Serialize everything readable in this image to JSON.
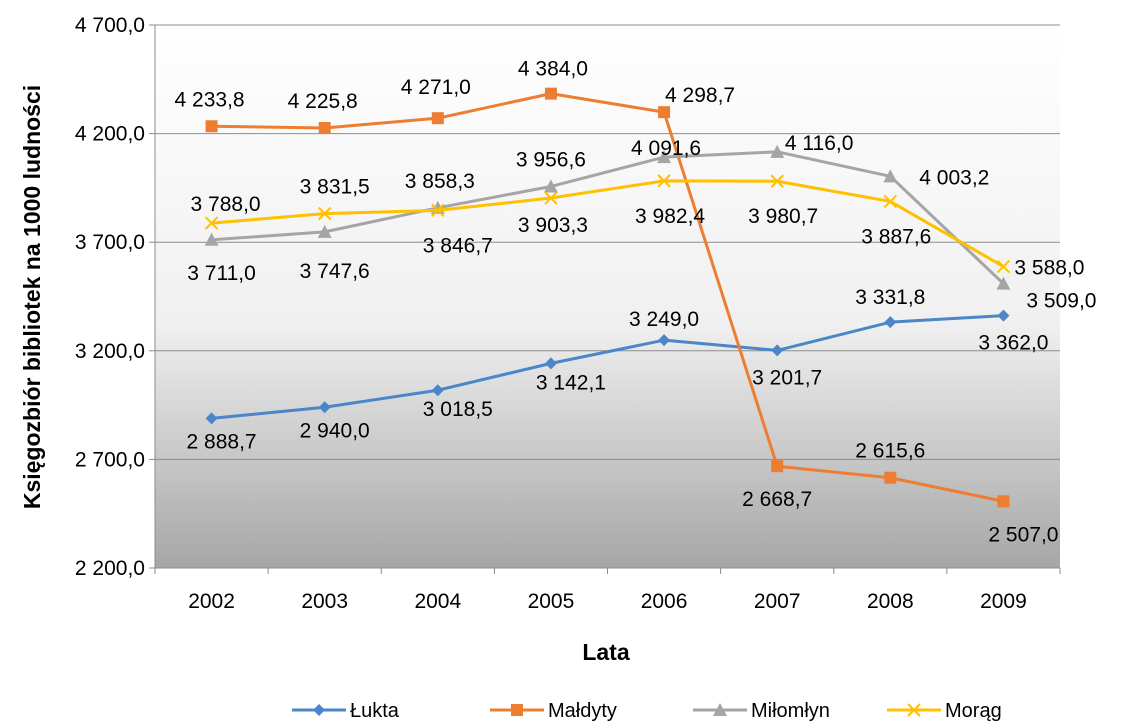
{
  "chart_data": {
    "type": "line",
    "title": "",
    "xlabel": "Lata",
    "ylabel": "Księgozbiór bibliotek na 1000 ludności",
    "x": [
      "2002",
      "2003",
      "2004",
      "2005",
      "2006",
      "2007",
      "2008",
      "2009"
    ],
    "ylim": [
      2200,
      4700
    ],
    "yticks": [
      2200,
      2700,
      3200,
      3700,
      4200,
      4700
    ],
    "ytick_labels": [
      "2 200,0",
      "2 700,0",
      "3 200,0",
      "3 700,0",
      "4 200,0",
      "4 700,0"
    ],
    "grid": true,
    "legend_position": "bottom",
    "series": [
      {
        "name": "Łukta",
        "color": "#4A86C8",
        "marker": "diamond",
        "values": [
          2888.7,
          2940.0,
          3018.5,
          3142.1,
          3249.0,
          3201.7,
          3331.8,
          3362.0
        ],
        "labels": [
          "2 888,7",
          "2 940,0",
          "3 018,5",
          "3 142,1",
          "3 249,0",
          "3 201,7",
          "3 331,8",
          "3 362,0"
        ]
      },
      {
        "name": "Małdyty",
        "color": "#ED7D31",
        "marker": "square",
        "values": [
          4233.8,
          4225.8,
          4271.0,
          4384.0,
          4298.7,
          2668.7,
          2615.6,
          2507.0
        ],
        "labels": [
          "4 233,8",
          "4 225,8",
          "4 271,0",
          "4 384,0",
          "4 298,7",
          "2 668,7",
          "2 615,6",
          "2 507,0"
        ]
      },
      {
        "name": "Miłomłyn",
        "color": "#A5A5A5",
        "marker": "triangle",
        "values": [
          3711.0,
          3747.6,
          3858.3,
          3956.6,
          4091.6,
          4116.0,
          4003.2,
          3509.0
        ],
        "labels": [
          "3 711,0",
          "3 747,6",
          "3 858,3",
          "3 956,6",
          "4 091,6",
          "4 116,0",
          "4 003,2",
          "3 509,0"
        ]
      },
      {
        "name": "Morąg",
        "color": "#FFC000",
        "marker": "x",
        "values": [
          3788.0,
          3831.5,
          3846.7,
          3903.3,
          3982.4,
          3980.7,
          3887.6,
          3588.0
        ],
        "labels": [
          "3 788,0",
          "3 831,5",
          "3 846,7",
          "3 903,3",
          "3 982,4",
          "3 980,7",
          "3 887,6",
          "3 588,0"
        ]
      }
    ]
  }
}
